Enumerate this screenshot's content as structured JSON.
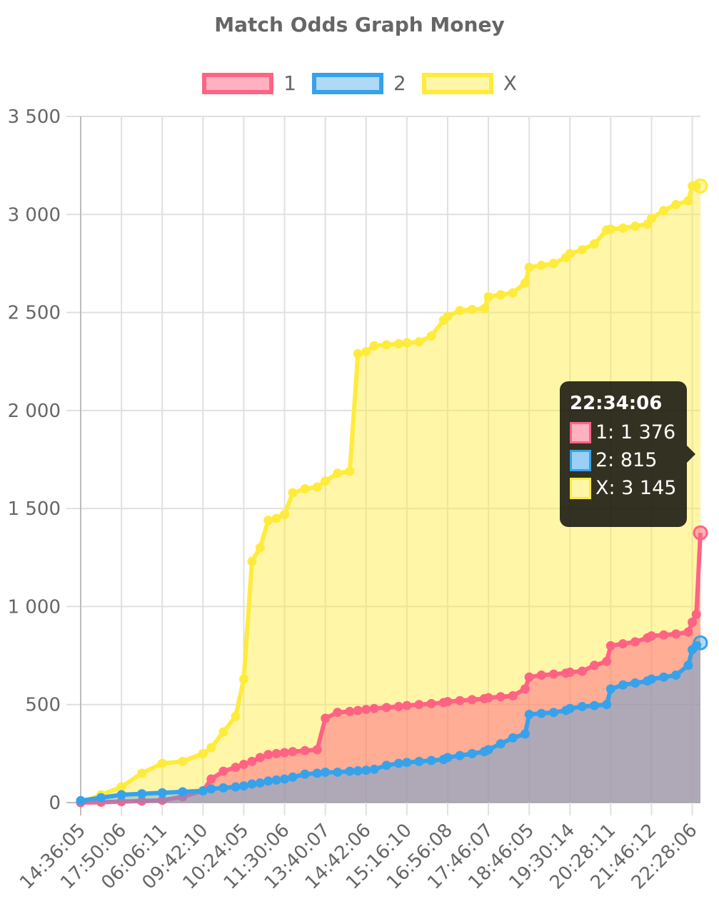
{
  "chart_data": {
    "type": "area",
    "title": "Match Odds Graph Money",
    "xlabel": "",
    "ylabel": "",
    "ylim": [
      0,
      3500
    ],
    "y_ticks": [
      "0",
      "500",
      "1 000",
      "1 500",
      "2 000",
      "2 500",
      "3 000",
      "3 500"
    ],
    "x_tick_labels": [
      "14:36:05",
      "17:50:06",
      "06:06:11",
      "09:42:10",
      "10:24:05",
      "11:30:06",
      "13:40:07",
      "14:42:06",
      "15:16:10",
      "16:56:08",
      "17:46:07",
      "18:46:05",
      "19:30:14",
      "20:28:11",
      "21:46:12",
      "22:28:06"
    ],
    "grid": true,
    "legend_position": "top",
    "x": [
      0,
      0.5,
      1,
      1.5,
      2,
      2.5,
      3,
      3.2,
      3.5,
      3.8,
      4,
      4.2,
      4.4,
      4.6,
      4.8,
      5,
      5.2,
      5.5,
      5.8,
      6,
      6.3,
      6.6,
      6.8,
      7,
      7.2,
      7.5,
      7.8,
      8,
      8.3,
      8.6,
      8.9,
      9,
      9.3,
      9.6,
      9.9,
      10,
      10.3,
      10.6,
      10.9,
      11,
      11.3,
      11.6,
      11.9,
      12,
      12.3,
      12.6,
      12.9,
      13,
      13.3,
      13.6,
      13.9,
      14,
      14.3,
      14.6,
      14.9,
      15,
      15.1,
      15.2
    ],
    "series": [
      {
        "name": "1",
        "color": "#ff6384",
        "fill": "rgba(255,99,132,0.5)",
        "values": [
          0,
          2,
          5,
          8,
          12,
          30,
          60,
          120,
          160,
          180,
          195,
          210,
          230,
          245,
          250,
          255,
          260,
          265,
          270,
          430,
          460,
          465,
          470,
          475,
          480,
          485,
          490,
          495,
          500,
          505,
          510,
          515,
          520,
          525,
          530,
          535,
          540,
          545,
          580,
          640,
          650,
          655,
          660,
          665,
          670,
          700,
          720,
          800,
          810,
          820,
          840,
          850,
          855,
          860,
          870,
          920,
          960,
          1376
        ]
      },
      {
        "name": "2",
        "color": "#36a2eb",
        "fill": "rgba(54,162,235,0.4)",
        "values": [
          10,
          25,
          40,
          45,
          50,
          55,
          60,
          70,
          75,
          80,
          85,
          95,
          100,
          110,
          115,
          120,
          130,
          145,
          150,
          155,
          155,
          160,
          162,
          165,
          170,
          190,
          200,
          205,
          210,
          215,
          220,
          230,
          240,
          250,
          260,
          270,
          300,
          330,
          350,
          450,
          455,
          460,
          470,
          480,
          490,
          495,
          500,
          580,
          600,
          610,
          620,
          630,
          640,
          650,
          700,
          780,
          800,
          815
        ]
      },
      {
        "name": "X",
        "color": "#ffeb3b",
        "fill": "rgba(255,235,59,0.45)",
        "values": [
          0,
          40,
          80,
          150,
          200,
          210,
          250,
          280,
          360,
          440,
          630,
          1230,
          1300,
          1440,
          1450,
          1470,
          1580,
          1600,
          1610,
          1640,
          1680,
          1690,
          2290,
          2300,
          2330,
          2335,
          2340,
          2345,
          2350,
          2380,
          2460,
          2480,
          2510,
          2515,
          2520,
          2580,
          2590,
          2600,
          2650,
          2730,
          2740,
          2750,
          2780,
          2800,
          2820,
          2850,
          2920,
          2925,
          2930,
          2940,
          2950,
          2980,
          3020,
          3050,
          3070,
          3145,
          3145,
          3145
        ]
      }
    ]
  },
  "legend": {
    "items": [
      {
        "label": "1",
        "border": "#ff6384",
        "bg": "rgba(255,99,132,0.5)"
      },
      {
        "label": "2",
        "border": "#36a2eb",
        "bg": "rgba(54,162,235,0.4)"
      },
      {
        "label": "X",
        "border": "#ffeb3b",
        "bg": "rgba(255,235,59,0.45)"
      }
    ]
  },
  "tooltip": {
    "title": "22:34:06",
    "rows": [
      {
        "text": "1: 1 376",
        "border": "#ff6384",
        "bg": "#ffb1c1"
      },
      {
        "text": "2: 815",
        "border": "#36a2eb",
        "bg": "#9ad0f5"
      },
      {
        "text": "X: 3 145",
        "border": "#ffeb3b",
        "bg": "#fff6a8"
      }
    ]
  }
}
